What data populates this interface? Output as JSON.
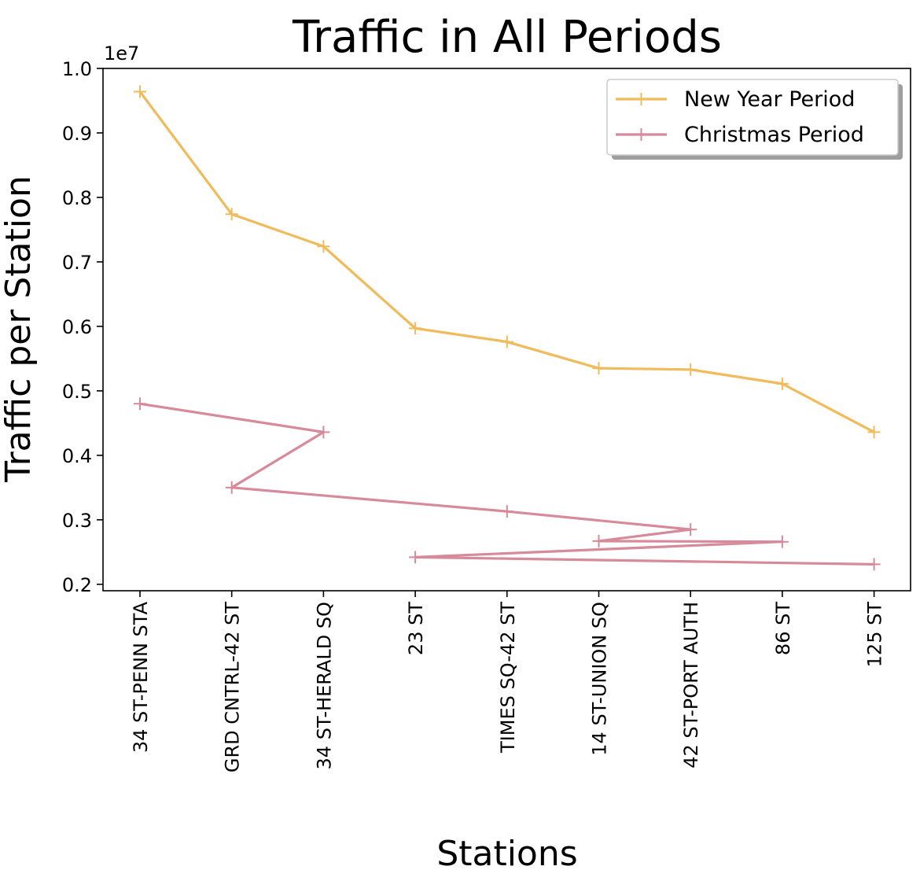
{
  "chart_data": {
    "type": "line",
    "title": "Traffic in All Periods",
    "xlabel": "Stations",
    "ylabel": "Traffic per Station",
    "y_offset_label": "1e7",
    "y_scale": 10000000,
    "ylim": [
      0.19,
      1.0
    ],
    "yticks": [
      "0.2",
      "0.3",
      "0.4",
      "0.5",
      "0.6",
      "0.7",
      "0.8",
      "0.9",
      "1.0"
    ],
    "categories": [
      "34 ST-PENN STA",
      "GRD CNTRL-42 ST",
      "34 ST-HERALD SQ",
      "23 ST",
      "TIMES SQ-42 ST",
      "14 ST-UNION SQ",
      "42 ST-PORT AUTH",
      "86 ST",
      "125 ST"
    ],
    "legend_position": "upper right",
    "grid": false,
    "series": [
      {
        "name": "New Year Period",
        "color": "#f0bb5a",
        "marker": "plus",
        "points": [
          {
            "x": "34 ST-PENN STA",
            "y": 0.964
          },
          {
            "x": "GRD CNTRL-42 ST",
            "y": 0.774
          },
          {
            "x": "34 ST-HERALD SQ",
            "y": 0.724
          },
          {
            "x": "23 ST",
            "y": 0.597
          },
          {
            "x": "TIMES SQ-42 ST",
            "y": 0.576
          },
          {
            "x": "14 ST-UNION SQ",
            "y": 0.535
          },
          {
            "x": "42 ST-PORT AUTH",
            "y": 0.533
          },
          {
            "x": "86 ST",
            "y": 0.511
          },
          {
            "x": "125 ST",
            "y": 0.436
          }
        ]
      },
      {
        "name": "Christmas Period",
        "color": "#d68a9a",
        "marker": "plus",
        "points": [
          {
            "x": "34 ST-PENN STA",
            "y": 0.48
          },
          {
            "x": "34 ST-HERALD SQ",
            "y": 0.436
          },
          {
            "x": "GRD CNTRL-42 ST",
            "y": 0.35
          },
          {
            "x": "TIMES SQ-42 ST",
            "y": 0.313
          },
          {
            "x": "42 ST-PORT AUTH",
            "y": 0.285
          },
          {
            "x": "14 ST-UNION SQ",
            "y": 0.267
          },
          {
            "x": "86 ST",
            "y": 0.266
          },
          {
            "x": "23 ST",
            "y": 0.242
          },
          {
            "x": "125 ST",
            "y": 0.231
          }
        ]
      }
    ]
  }
}
